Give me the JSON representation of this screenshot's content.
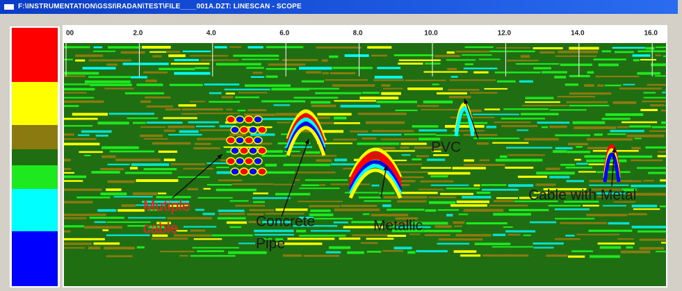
{
  "window": {
    "title": "F:\\INSTRUMENTATION\\GSSI\\RADAN\\TEST\\FILE____001A.DZT: LINESCAN - SCOPE"
  },
  "ruler": {
    "labels": [
      "00",
      "2.0",
      "4.0",
      "6.0",
      "8.0",
      "10.0",
      "12.0",
      "14.0",
      "16.0"
    ]
  },
  "annotations": [
    {
      "lines": [
        "Mutiple",
        "cable"
      ]
    },
    {
      "lines": [
        "Concrete",
        "Pipe"
      ]
    },
    {
      "lines": [
        "Metallic"
      ]
    },
    {
      "lines": [
        "PVC"
      ]
    },
    {
      "lines": [
        "Cable with Metal"
      ]
    }
  ]
}
